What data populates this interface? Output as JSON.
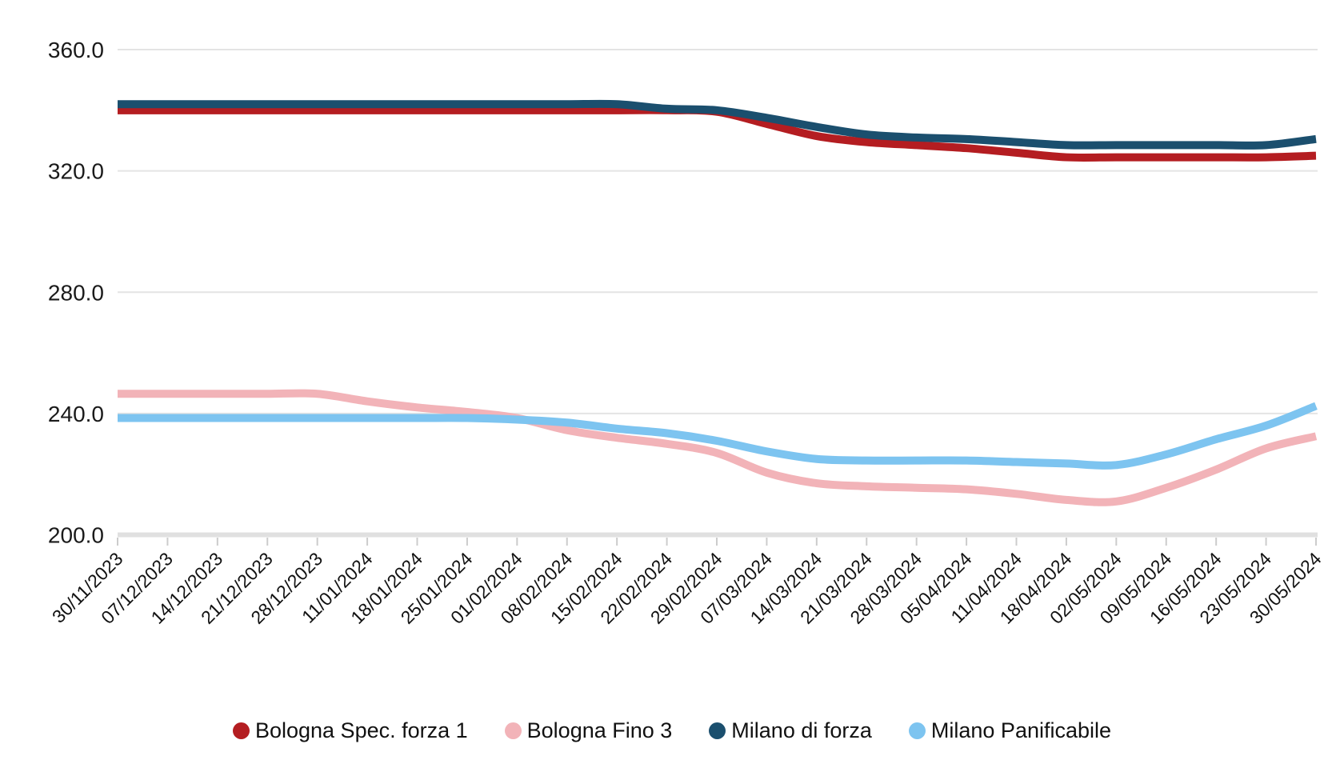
{
  "chart_data": {
    "type": "line",
    "title": "",
    "xlabel": "",
    "ylabel": "",
    "categories": [
      "30/11/2023",
      "07/12/2023",
      "14/12/2023",
      "21/12/2023",
      "28/12/2023",
      "11/01/2024",
      "18/01/2024",
      "25/01/2024",
      "01/02/2024",
      "08/02/2024",
      "15/02/2024",
      "22/02/2024",
      "29/02/2024",
      "07/03/2024",
      "14/03/2024",
      "21/03/2024",
      "28/03/2024",
      "05/04/2024",
      "11/04/2024",
      "18/04/2024",
      "02/05/2024",
      "09/05/2024",
      "16/05/2024",
      "23/05/2024",
      "30/05/2024"
    ],
    "series": [
      {
        "name": "Bologna Spec. forza 1",
        "color": "#b41d21",
        "values": [
          340,
          340,
          340,
          340,
          340,
          340,
          340,
          340,
          340,
          340,
          340,
          340,
          339.5,
          335.5,
          331.5,
          329.5,
          328.5,
          327.5,
          326,
          324.5,
          324.5,
          324.5,
          324.5,
          324.5,
          325
        ]
      },
      {
        "name": "Bologna Fino 3",
        "color": "#f2b3b8",
        "values": [
          246.5,
          246.5,
          246.5,
          246.5,
          246.5,
          244,
          242,
          240.5,
          238.5,
          234.5,
          232,
          230,
          227,
          220.5,
          217,
          216,
          215.5,
          215,
          213.5,
          211.5,
          211,
          215.5,
          221.5,
          228.5,
          232.5
        ]
      },
      {
        "name": "Milano di forza",
        "color": "#1b4f6e",
        "values": [
          342,
          342,
          342,
          342,
          342,
          342,
          342,
          342,
          342,
          342,
          342,
          340.5,
          340,
          337.5,
          334.5,
          332,
          331,
          330.5,
          329.5,
          328.5,
          328.5,
          328.5,
          328.5,
          328.5,
          330.5
        ]
      },
      {
        "name": "Milano Panificabile",
        "color": "#7dc4f0",
        "values": [
          238.5,
          238.5,
          238.5,
          238.5,
          238.5,
          238.5,
          238.5,
          238.5,
          238,
          237,
          235,
          233.5,
          231,
          227.5,
          225,
          224.5,
          224.5,
          224.5,
          224,
          223.5,
          223,
          226.5,
          231.5,
          236,
          242.5
        ]
      }
    ],
    "y_axis": {
      "min": 200,
      "max": 360,
      "tick_step": 40,
      "tick_labels": [
        "200.0",
        "240.0",
        "280.0",
        "320.0",
        "360.0"
      ]
    },
    "x_axis": {
      "label_rotation_deg": -45
    },
    "grid": true,
    "legend_position": "bottom",
    "colors": {
      "gridline": "#e4e4e4",
      "axis_baseline": "#e0e0e0",
      "tick_mark": "#cccccc",
      "axis_text": "#1a1a1a",
      "background": "#ffffff"
    }
  }
}
